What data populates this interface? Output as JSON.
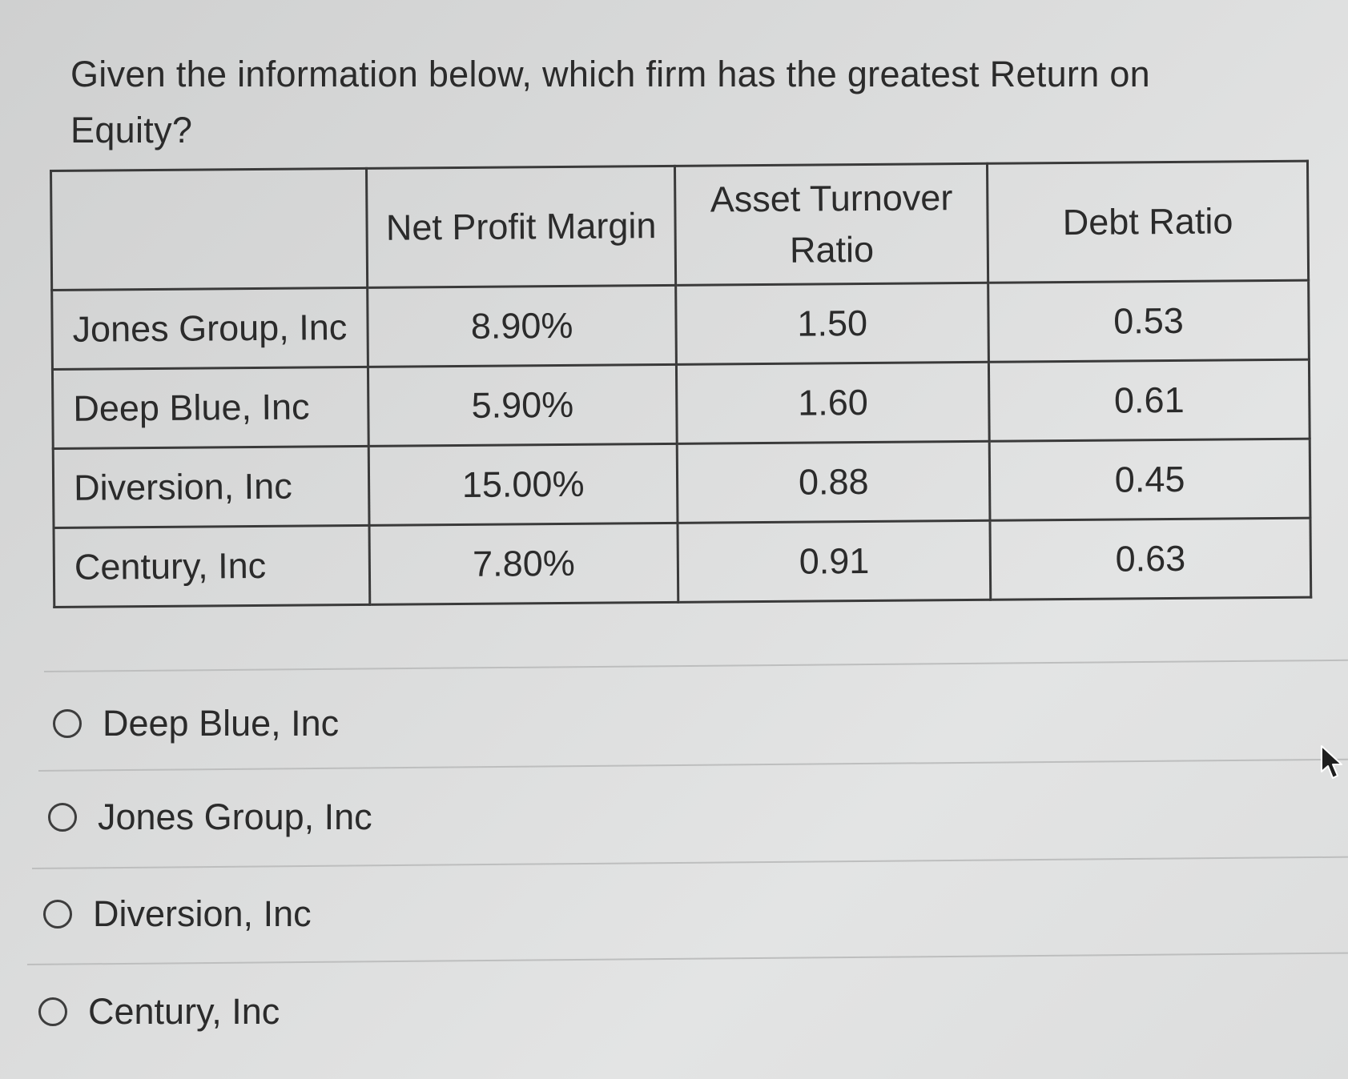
{
  "question": {
    "text": "Given the information below, which firm has the greatest Return on Equity?"
  },
  "table": {
    "headers": [
      "",
      "Net Profit Margin",
      "Asset Turnover Ratio",
      "Debt Ratio"
    ],
    "rows": [
      {
        "firm": "Jones Group, Inc",
        "net_profit_margin": "8.90%",
        "asset_turnover_ratio": "1.50",
        "debt_ratio": "0.53"
      },
      {
        "firm": "Deep Blue, Inc",
        "net_profit_margin": "5.90%",
        "asset_turnover_ratio": "1.60",
        "debt_ratio": "0.61"
      },
      {
        "firm": "Diversion, Inc",
        "net_profit_margin": "15.00%",
        "asset_turnover_ratio": "0.88",
        "debt_ratio": "0.45"
      },
      {
        "firm": "Century, Inc",
        "net_profit_margin": "7.80%",
        "asset_turnover_ratio": "0.91",
        "debt_ratio": "0.63"
      }
    ]
  },
  "options": [
    {
      "label": "Deep Blue, Inc",
      "selected": false
    },
    {
      "label": "Jones Group, Inc",
      "selected": false
    },
    {
      "label": "Diversion, Inc",
      "selected": false
    },
    {
      "label": "Century, Inc",
      "selected": false
    }
  ],
  "icons": {
    "radio": "radio-button-unchecked-icon",
    "cursor": "mouse-pointer-icon"
  }
}
